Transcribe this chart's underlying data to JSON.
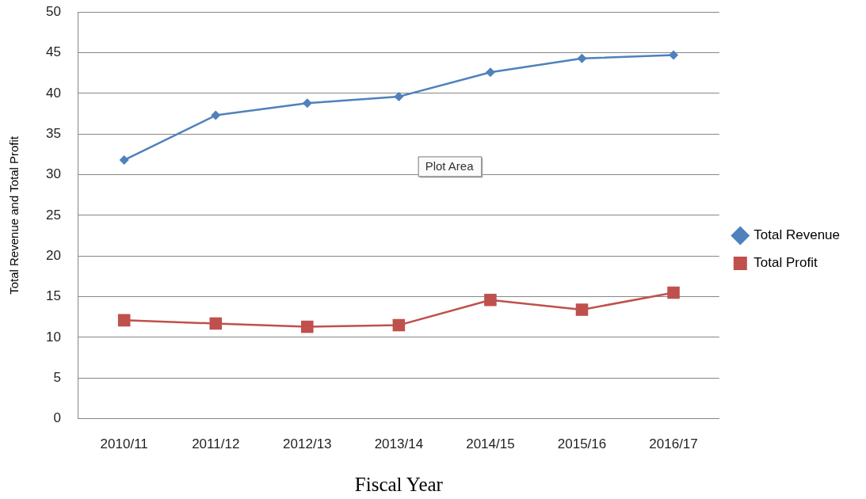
{
  "chart_data": {
    "type": "line",
    "xlabel": "Fiscal Year",
    "ylabel": "Total Revenue and Total Profit",
    "categories": [
      "2010/11",
      "2011/12",
      "2012/13",
      "2013/14",
      "2014/15",
      "2015/16",
      "2016/17"
    ],
    "series": [
      {
        "name": "Total Revenue",
        "color": "#4f81bd",
        "marker": "diamond",
        "values": [
          31.8,
          37.3,
          38.8,
          39.6,
          42.6,
          44.3,
          44.7
        ]
      },
      {
        "name": "Total Profit",
        "color": "#c0504d",
        "marker": "square",
        "values": [
          12.1,
          11.7,
          11.3,
          11.5,
          14.6,
          13.4,
          15.5
        ]
      }
    ],
    "ylim": [
      0,
      50
    ],
    "yticks": [
      0,
      5,
      10,
      15,
      20,
      25,
      30,
      35,
      40,
      45,
      50
    ],
    "grid": "y",
    "legend": "right",
    "annotations": [
      "Plot Area"
    ]
  }
}
